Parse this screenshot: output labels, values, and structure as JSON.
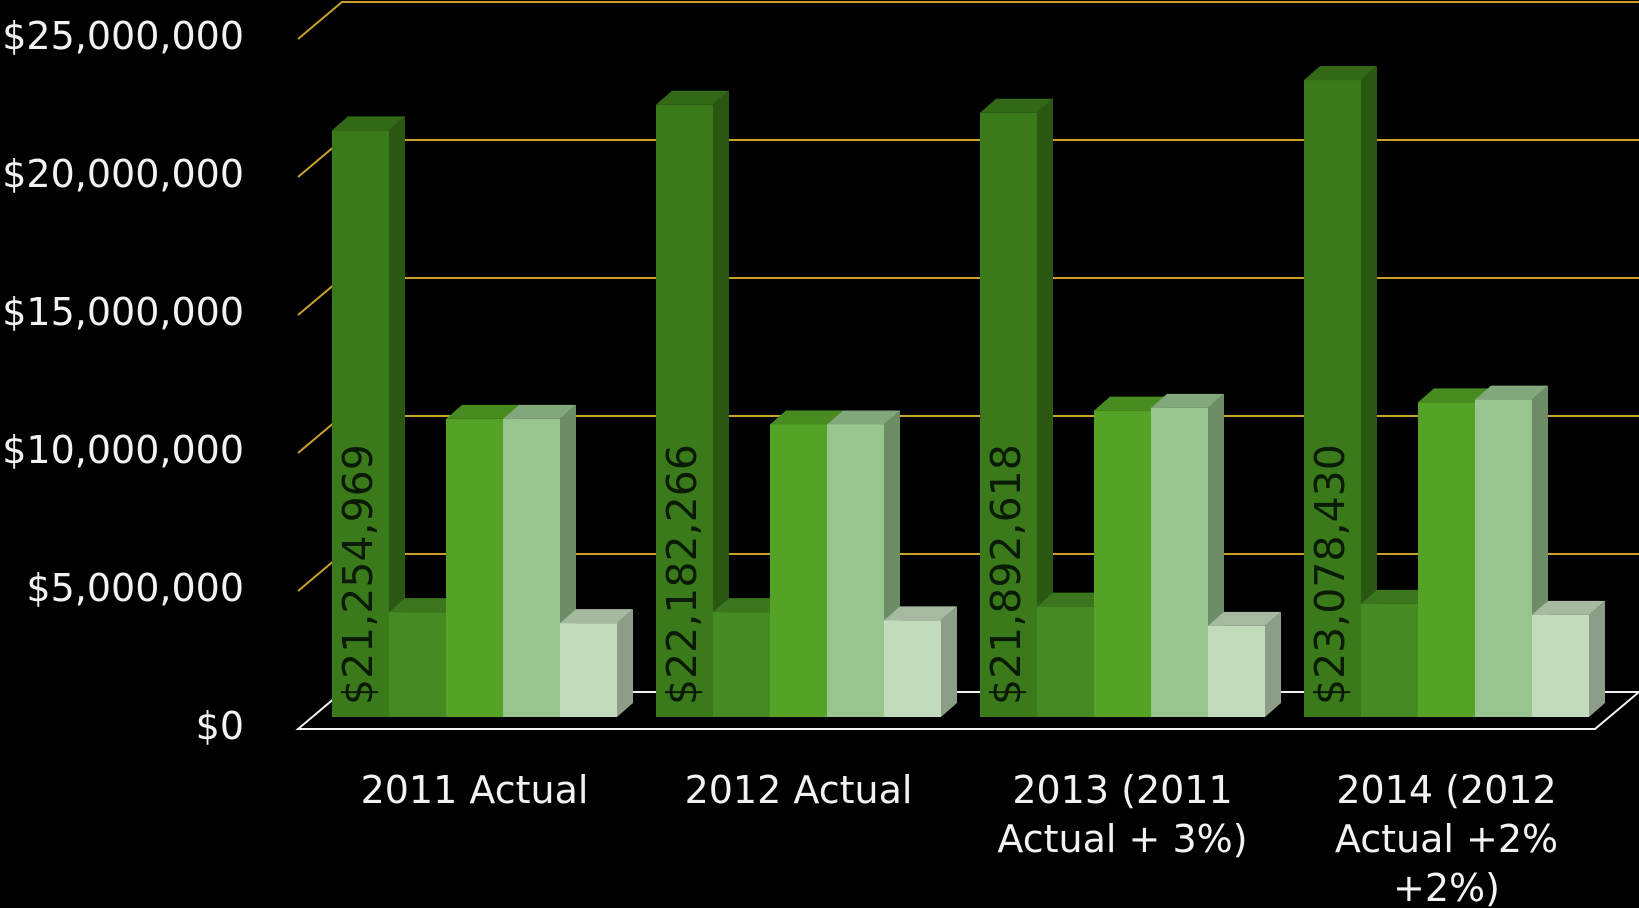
{
  "colors": {
    "background": "#000000",
    "gridline": "#c9a227",
    "axis": "#f2f2f2",
    "label_text": "#0b1a05"
  },
  "chart_data": {
    "type": "bar",
    "style": "3d-clustered-column",
    "categories": [
      [
        "2011 Actual"
      ],
      [
        "2012 Actual"
      ],
      [
        "2013 (2011",
        "Actual + 3%)"
      ],
      [
        "2014 (2012",
        "Actual +2%",
        "+2%)"
      ]
    ],
    "series": [
      {
        "color": "#3b7a1a",
        "values": [
          21254969,
          22182266,
          21892618,
          23078430
        ],
        "data_labels": [
          "$21,254,969",
          "$22,182,266",
          "$21,892,618",
          "$23,078,430"
        ]
      },
      {
        "color": "#458a22",
        "values": [
          3800000,
          3800000,
          4000000,
          4100000
        ]
      },
      {
        "color": "#55a326",
        "values": [
          10800000,
          10600000,
          11100000,
          11400000
        ]
      },
      {
        "color": "#98c48f",
        "values": [
          10800000,
          10600000,
          11200000,
          11500000
        ]
      },
      {
        "color": "#c3dbbd",
        "values": [
          3400000,
          3500000,
          3300000,
          3700000
        ]
      }
    ],
    "y_ticks": [
      "$0",
      "$5,000,000",
      "$10,000,000",
      "$15,000,000",
      "$20,000,000",
      "$25,000,000"
    ],
    "ylim": [
      0,
      25000000
    ],
    "grid": true,
    "legend": "none"
  }
}
